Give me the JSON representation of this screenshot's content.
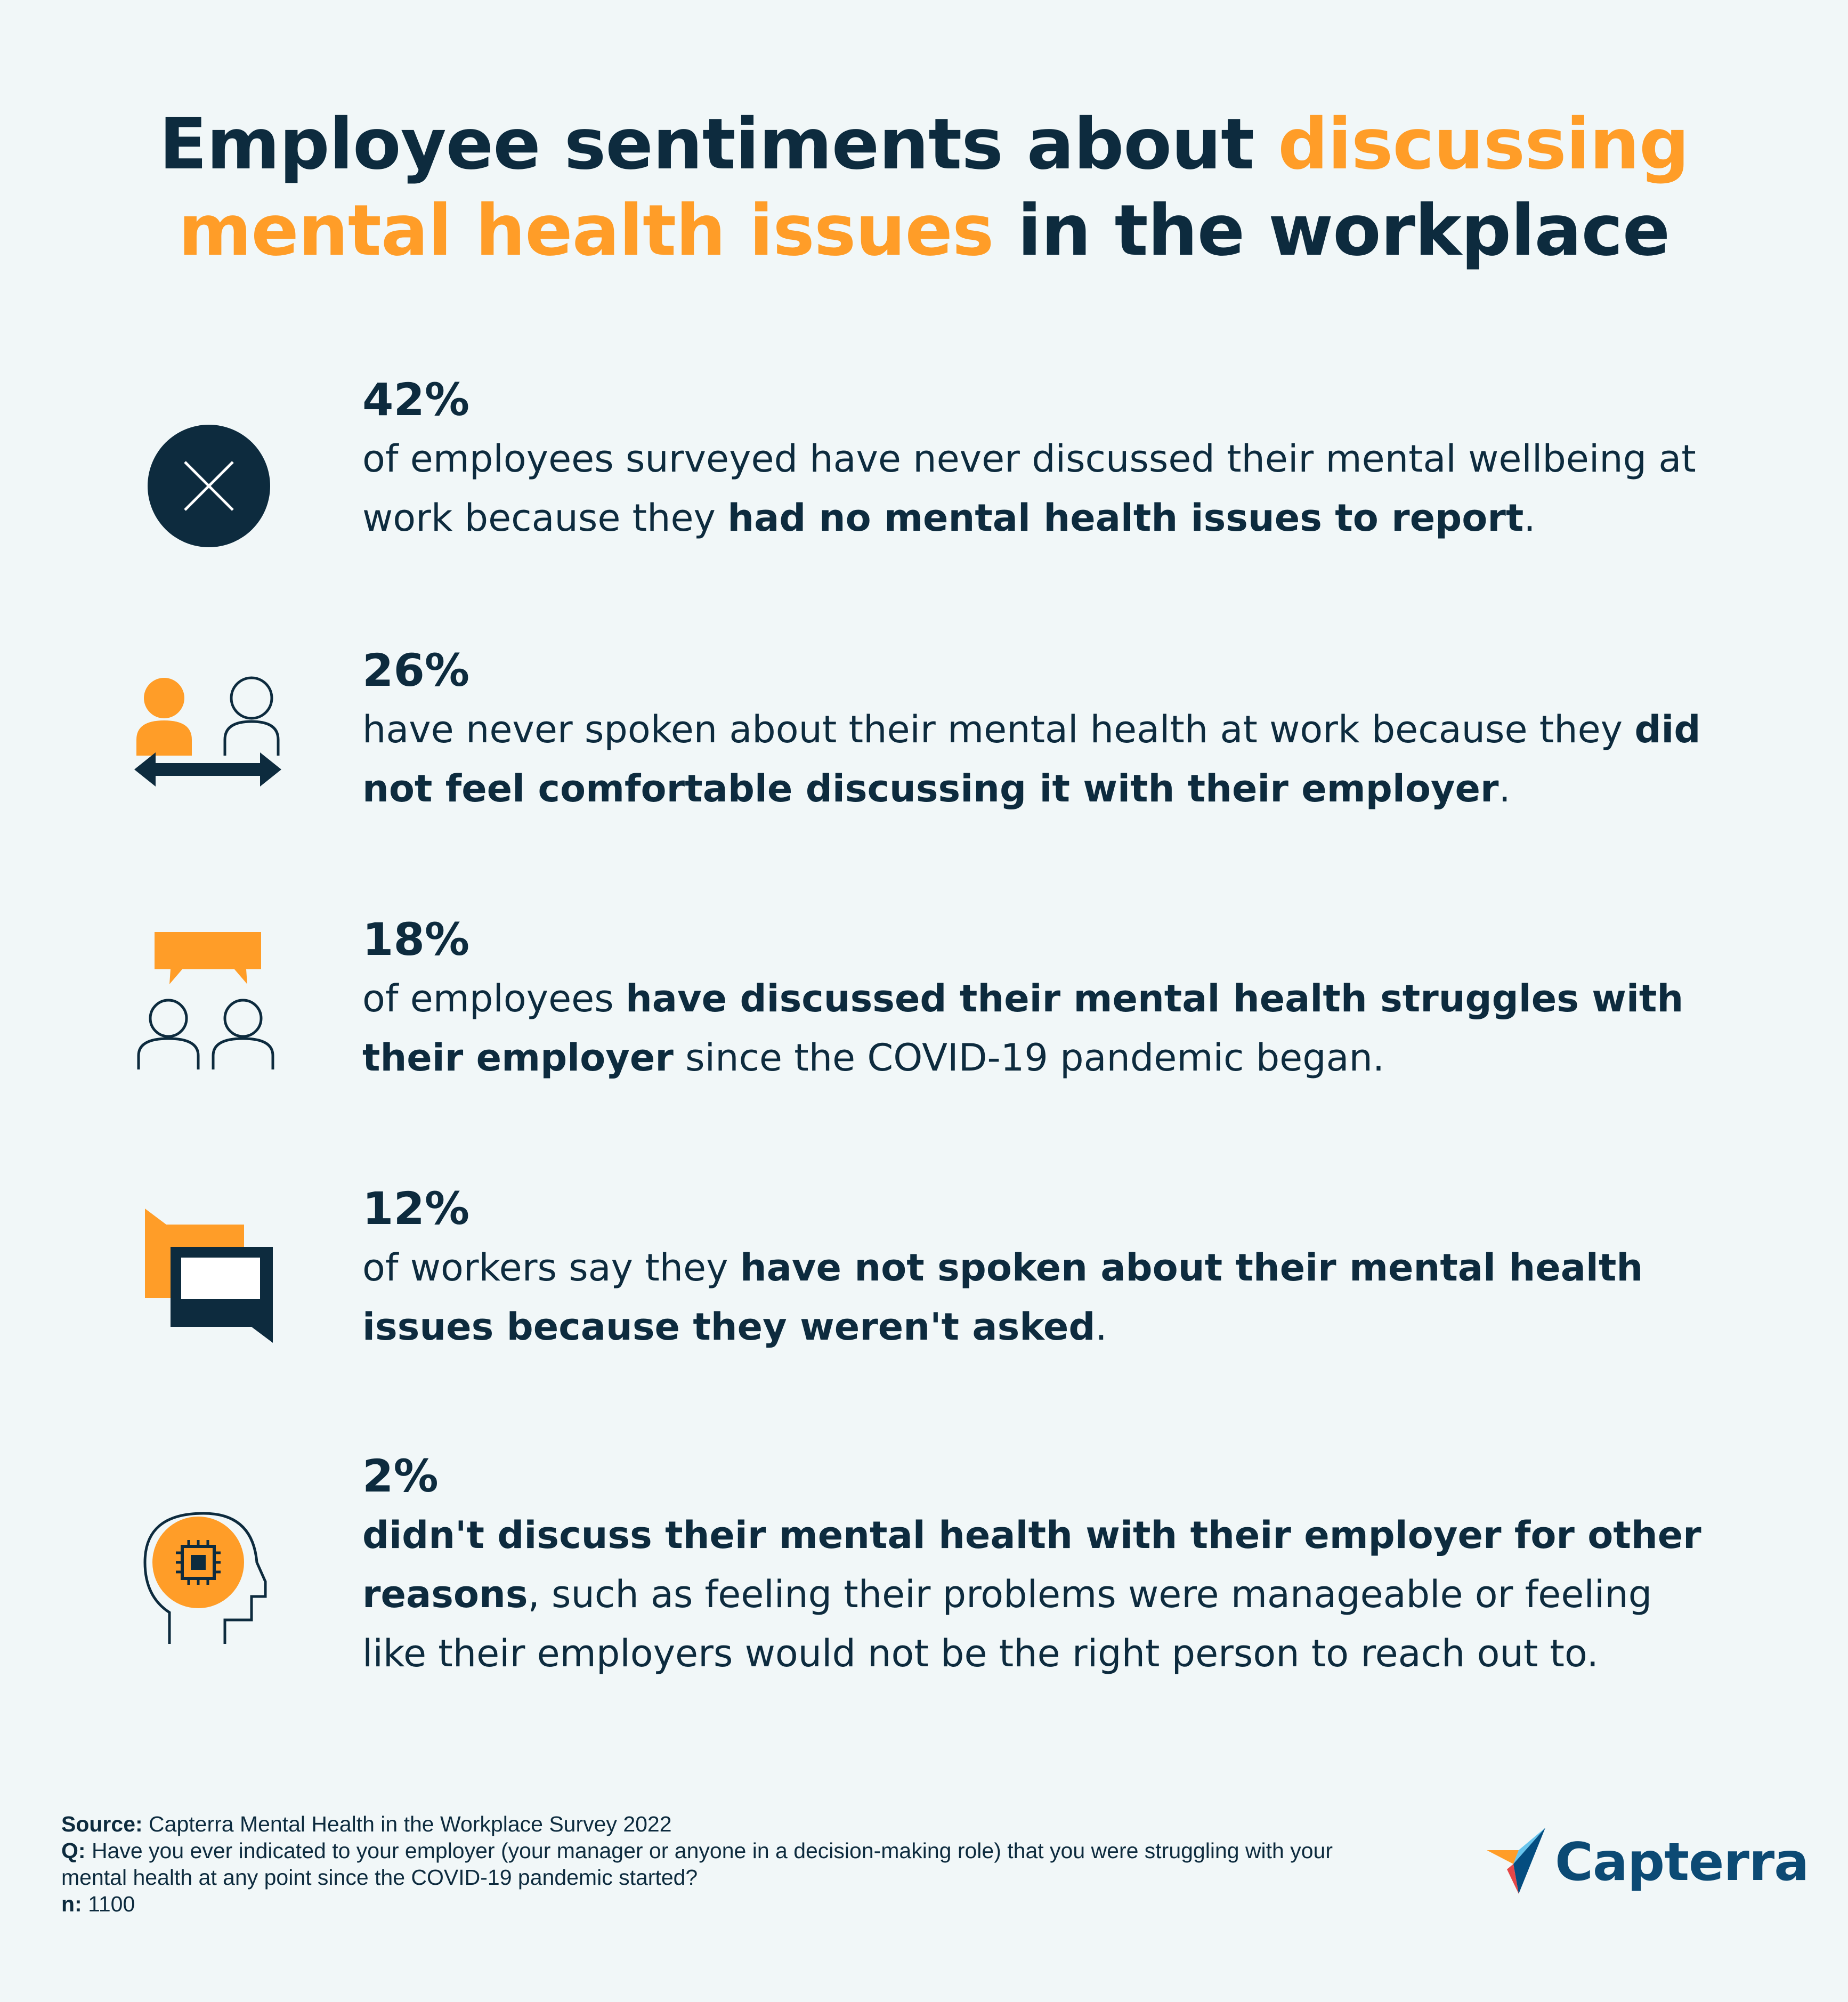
{
  "title": {
    "part1": "Employee sentiments about ",
    "part2": "discussing",
    "part3": "mental health issues",
    "part4": " in the workplace"
  },
  "stats": [
    {
      "percent": "42%",
      "icon": "circle-x-icon",
      "text_a": "of employees surveyed have never discussed their mental wellbeing at work because they ",
      "bold_a": "had no mental health issues to report",
      "text_b": "."
    },
    {
      "percent": "26%",
      "icon": "two-people-arrow-icon",
      "text_a": "have never spoken about their mental health at work because they ",
      "bold_a": "did not feel comfortable discussing it with their employer",
      "text_b": "."
    },
    {
      "percent": "18%",
      "icon": "people-speech-bubble-icon",
      "text_a": "of employees ",
      "bold_a": "have discussed their mental health struggles with their employer",
      "text_b": " since the COVID-19 pandemic began."
    },
    {
      "percent": "12%",
      "icon": "chat-bubbles-icon",
      "text_a": "of workers say they ",
      "bold_a": "have not spoken about their mental health issues because they weren't asked",
      "text_b": "."
    },
    {
      "percent": "2%",
      "icon": "head-chip-icon",
      "text_a": "",
      "bold_a": "didn't discuss their mental health with their employer for other reasons",
      "text_b": ", such as feeling their problems were manageable or feeling like their employers would not be the right person to reach out to."
    }
  ],
  "footer": {
    "source_label": "Source:",
    "source_value": " Capterra Mental Health in the Workplace Survey 2022",
    "q_label": "Q:",
    "q_value": " Have you ever indicated to your employer (your manager or anyone in a decision-making role) that you were struggling with your mental health at any point since the COVID-19 pandemic started?",
    "n_label": "n:",
    "n_value": " 1100"
  },
  "logo": {
    "text": "Capterra"
  },
  "colors": {
    "navy": "#0d2b3e",
    "orange": "#ff9d28",
    "background": "#f1f7f8",
    "logo_blue": "#0c4a74"
  }
}
